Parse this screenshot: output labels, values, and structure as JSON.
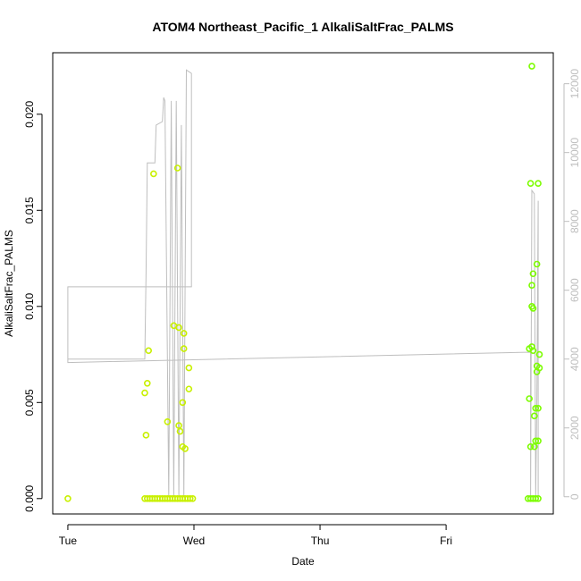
{
  "chart_data": {
    "type": "scatter",
    "title": "ATOM4 Northeast_Pacific_1 AlkaliSaltFrac_PALMS",
    "xlabel": "Date",
    "ylabel": "AlkaliSaltFrac_PALMS",
    "x_ticks": [
      "Tue",
      "Wed",
      "Thu",
      "Fri"
    ],
    "xlim": [
      -0.12,
      3.85
    ],
    "ylim": [
      -0.0008,
      0.0232
    ],
    "y_ticks": [
      "0.000",
      "0.005",
      "0.010",
      "0.015",
      "0.020"
    ],
    "y_tick_values": [
      0,
      0.005,
      0.01,
      0.015,
      0.02
    ],
    "y2lim": [
      -500,
      12900
    ],
    "y2_ticks": [
      "0",
      "2000",
      "4000",
      "6000",
      "8000",
      "10000",
      "12000"
    ],
    "y2_tick_values": [
      0,
      2000,
      4000,
      6000,
      8000,
      10000,
      12000
    ],
    "grid": false,
    "legend": "none",
    "colors": {
      "points_early": "#c8f000",
      "points_late": "#7cfc00",
      "line": "#bebebe",
      "axis": "#000000",
      "right_axis": "#bebebe"
    },
    "series": [
      {
        "style": "points",
        "axis": "left",
        "points": [
          {
            "x": 0.0,
            "y": 0.0
          },
          {
            "x": 0.61,
            "y": 0.0055
          },
          {
            "x": 0.62,
            "y": 0.0033
          },
          {
            "x": 0.63,
            "y": 0.006
          },
          {
            "x": 0.64,
            "y": 0.0077
          },
          {
            "x": 0.68,
            "y": 0.0169
          },
          {
            "x": 0.79,
            "y": 0.004
          },
          {
            "x": 0.84,
            "y": 0.009
          },
          {
            "x": 0.88,
            "y": 0.0089
          },
          {
            "x": 0.87,
            "y": 0.0172
          },
          {
            "x": 0.88,
            "y": 0.0038
          },
          {
            "x": 0.89,
            "y": 0.0035
          },
          {
            "x": 0.91,
            "y": 0.005
          },
          {
            "x": 0.92,
            "y": 0.0086
          },
          {
            "x": 0.92,
            "y": 0.0078
          },
          {
            "x": 0.91,
            "y": 0.0027
          },
          {
            "x": 0.93,
            "y": 0.0026
          },
          {
            "x": 0.96,
            "y": 0.0068
          },
          {
            "x": 0.96,
            "y": 0.0057
          },
          {
            "x": 0.61,
            "y": 0.0
          },
          {
            "x": 0.63,
            "y": 0.0
          },
          {
            "x": 0.65,
            "y": 0.0
          },
          {
            "x": 0.67,
            "y": 0.0
          },
          {
            "x": 0.69,
            "y": 0.0
          },
          {
            "x": 0.71,
            "y": 0.0
          },
          {
            "x": 0.73,
            "y": 0.0
          },
          {
            "x": 0.75,
            "y": 0.0
          },
          {
            "x": 0.77,
            "y": 0.0
          },
          {
            "x": 0.79,
            "y": 0.0
          },
          {
            "x": 0.81,
            "y": 0.0
          },
          {
            "x": 0.83,
            "y": 0.0
          },
          {
            "x": 0.85,
            "y": 0.0
          },
          {
            "x": 0.87,
            "y": 0.0
          },
          {
            "x": 0.89,
            "y": 0.0
          },
          {
            "x": 0.91,
            "y": 0.0
          },
          {
            "x": 0.93,
            "y": 0.0
          },
          {
            "x": 0.95,
            "y": 0.0
          },
          {
            "x": 0.97,
            "y": 0.0
          },
          {
            "x": 0.99,
            "y": 0.0
          },
          {
            "x": 3.65,
            "y": 0.0
          },
          {
            "x": 3.67,
            "y": 0.0
          },
          {
            "x": 3.69,
            "y": 0.0
          },
          {
            "x": 3.71,
            "y": 0.0
          },
          {
            "x": 3.73,
            "y": 0.0
          },
          {
            "x": 3.68,
            "y": 0.0225
          },
          {
            "x": 3.67,
            "y": 0.0164
          },
          {
            "x": 3.73,
            "y": 0.0164
          },
          {
            "x": 3.72,
            "y": 0.0122
          },
          {
            "x": 3.69,
            "y": 0.0117
          },
          {
            "x": 3.68,
            "y": 0.0111
          },
          {
            "x": 3.68,
            "y": 0.01
          },
          {
            "x": 3.69,
            "y": 0.0099
          },
          {
            "x": 3.68,
            "y": 0.0079
          },
          {
            "x": 3.66,
            "y": 0.0078
          },
          {
            "x": 3.69,
            "y": 0.0077
          },
          {
            "x": 3.74,
            "y": 0.0075
          },
          {
            "x": 3.72,
            "y": 0.0069
          },
          {
            "x": 3.74,
            "y": 0.0068
          },
          {
            "x": 3.72,
            "y": 0.0066
          },
          {
            "x": 3.66,
            "y": 0.0052
          },
          {
            "x": 3.71,
            "y": 0.0047
          },
          {
            "x": 3.73,
            "y": 0.0047
          },
          {
            "x": 3.7,
            "y": 0.0043
          },
          {
            "x": 3.71,
            "y": 0.003
          },
          {
            "x": 3.73,
            "y": 0.003
          },
          {
            "x": 3.67,
            "y": 0.0027
          },
          {
            "x": 3.7,
            "y": 0.0027
          }
        ]
      },
      {
        "style": "line",
        "axis": "right",
        "points": [
          {
            "x": 0.0,
            "y": 6000
          },
          {
            "x": 0.0,
            "y": 4000
          },
          {
            "x": 0.61,
            "y": 4000
          },
          {
            "x": 0.62,
            "y": 6500
          },
          {
            "x": 0.63,
            "y": 9700
          },
          {
            "x": 0.69,
            "y": 9700
          },
          {
            "x": 0.7,
            "y": 10800
          },
          {
            "x": 0.75,
            "y": 10900
          },
          {
            "x": 0.76,
            "y": 11600
          },
          {
            "x": 0.77,
            "y": 11500
          },
          {
            "x": 0.8,
            "y": 0
          },
          {
            "x": 0.82,
            "y": 11500
          },
          {
            "x": 0.84,
            "y": 0
          },
          {
            "x": 0.86,
            "y": 11500
          },
          {
            "x": 0.88,
            "y": 0
          },
          {
            "x": 0.9,
            "y": 10800
          },
          {
            "x": 0.92,
            "y": 0
          },
          {
            "x": 0.94,
            "y": 12400
          },
          {
            "x": 0.98,
            "y": 12300
          },
          {
            "x": 0.98,
            "y": 6100
          },
          {
            "x": 0.0,
            "y": 6100
          },
          {
            "x": 0.0,
            "y": 3900
          },
          {
            "x": 3.67,
            "y": 4200
          },
          {
            "x": 3.67,
            "y": 0
          },
          {
            "x": 3.68,
            "y": 8900
          },
          {
            "x": 3.7,
            "y": 8800
          },
          {
            "x": 3.71,
            "y": 0
          },
          {
            "x": 3.72,
            "y": 3000
          },
          {
            "x": 3.73,
            "y": 8600
          },
          {
            "x": 3.73,
            "y": 0
          }
        ]
      }
    ]
  }
}
